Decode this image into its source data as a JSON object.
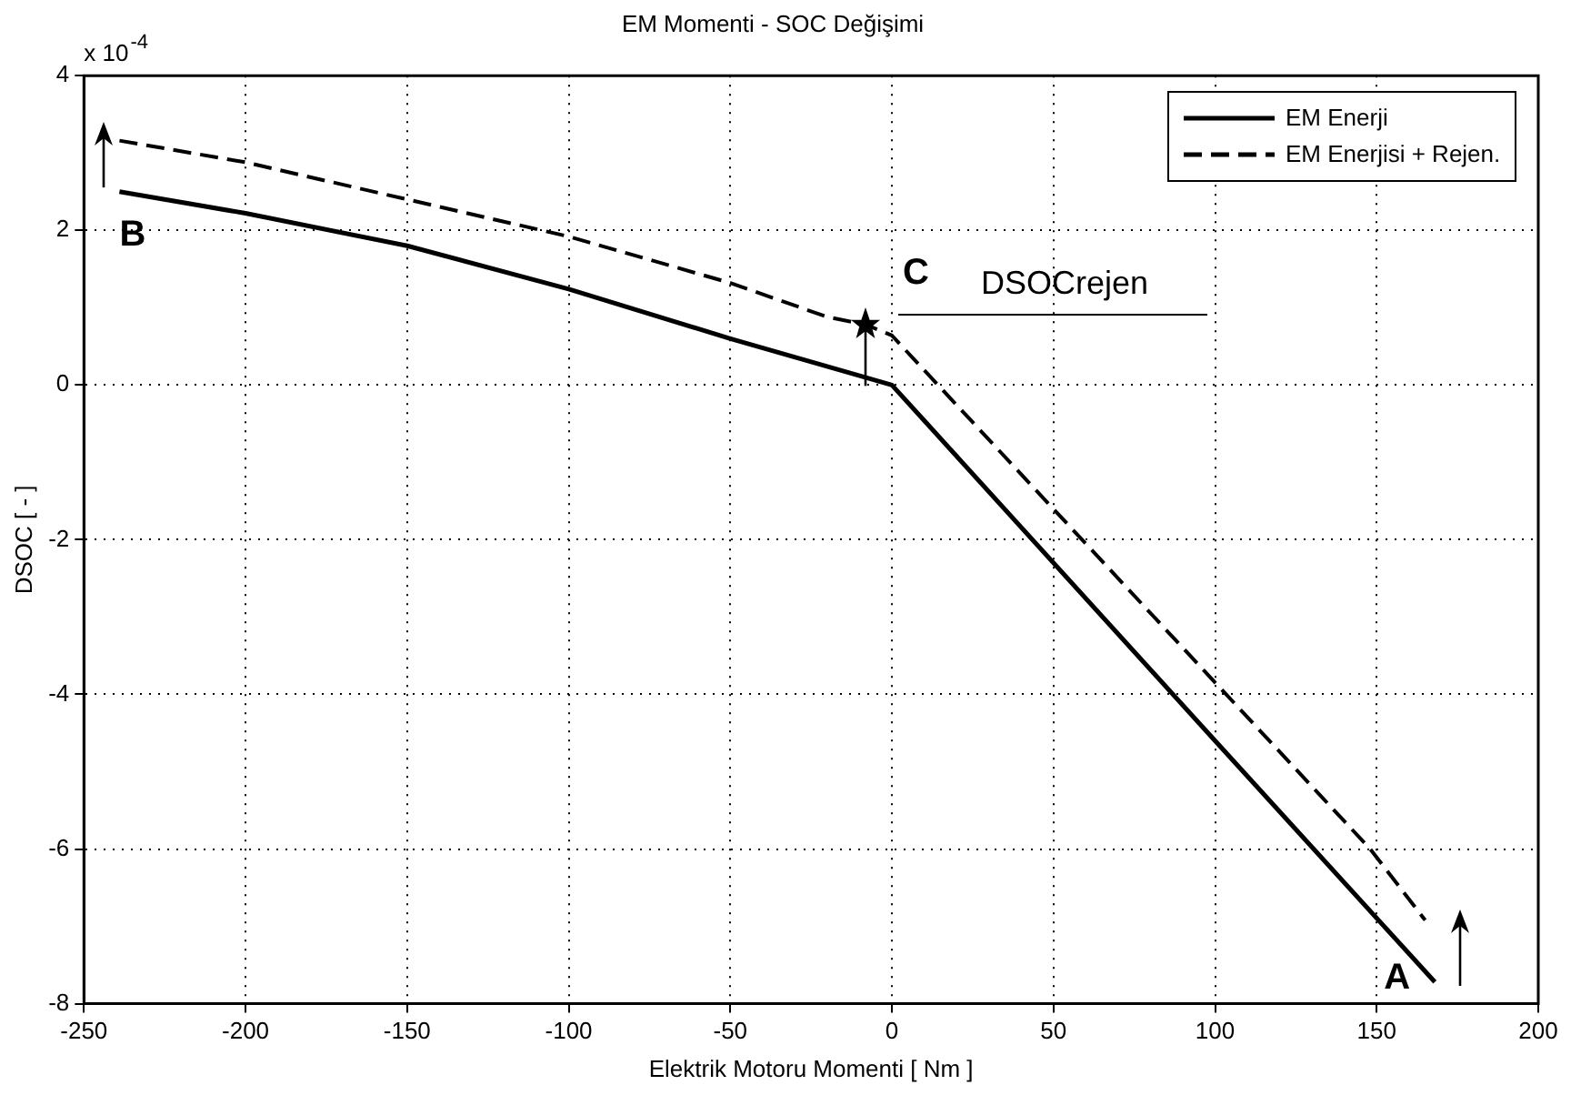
{
  "chart_data": {
    "type": "line",
    "title": "EM Momenti - SOC Değişimi",
    "xlabel": "Elektrik Motoru Momenti [ Nm ]",
    "ylabel": "DSOC [ - ]",
    "series": [
      {
        "name": "EM Enerji",
        "color": "#000000",
        "line_style": "solid",
        "x": [
          -239,
          -200,
          -150,
          -100,
          -50,
          -10,
          0,
          100,
          168
        ],
        "values": [
          2.5,
          2.22,
          1.8,
          1.24,
          0.6,
          0.12,
          0,
          -4.6,
          -7.72
        ]
      },
      {
        "name": "EM Enerjisi + Rejen.",
        "color": "#000000",
        "line_style": "dashed",
        "x": [
          -239,
          -200,
          -150,
          -100,
          -50,
          -20,
          -8,
          0,
          148,
          165
        ],
        "values": [
          3.16,
          2.88,
          2.4,
          1.92,
          1.32,
          0.88,
          0.78,
          0.64,
          -6,
          -6.92
        ]
      }
    ],
    "xlim": [
      -250,
      200
    ],
    "xticks": [
      -250,
      -200,
      -150,
      -100,
      -50,
      0,
      50,
      100,
      150,
      200
    ],
    "ylim": [
      -8,
      4
    ],
    "yticks": [
      -8,
      -6,
      -4,
      -2,
      0,
      2,
      4
    ],
    "grid": true,
    "legend": "top right",
    "marker": "none",
    "annotations": [
      "x 10$^{-4}$",
      "B",
      "C",
      "A",
      "DSOCrejen"
    ]
  }
}
